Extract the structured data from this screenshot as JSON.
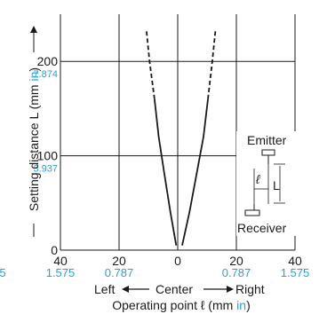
{
  "colors": {
    "line": "#1a1a1a",
    "inch_text": "#2a9fd8",
    "grid": "#1a1a1a"
  },
  "chart_data": {
    "type": "line",
    "xlabel_prefix": "Operating point ℓ (mm ",
    "xlabel_unit": "in",
    "xlabel_suffix": ")",
    "ylabel_prefix": "Setting distance L (mm ",
    "ylabel_unit": "in",
    "ylabel_suffix": ")",
    "xlim": [
      -40,
      40
    ],
    "ylim": [
      0,
      250
    ],
    "x_ticks": [
      {
        "value": -40,
        "mm": "40",
        "inch": "1.575"
      },
      {
        "value": -20,
        "mm": "20",
        "inch": "0.787"
      },
      {
        "value": 0,
        "mm": "0",
        "inch": ""
      },
      {
        "value": 20,
        "mm": "20",
        "inch": "0.787"
      },
      {
        "value": 40,
        "mm": "40",
        "inch": "1.575"
      }
    ],
    "x_clipped_left_label": "5",
    "y_ticks": [
      {
        "value": 0,
        "mm": "0",
        "inch": ""
      },
      {
        "value": 100,
        "mm": "100",
        "inch": "3.937"
      },
      {
        "value": 200,
        "mm": "200",
        "inch": "7.874"
      }
    ],
    "direction": {
      "left": "Left",
      "center": "Center",
      "right": "Right"
    },
    "series": [
      {
        "side": "left",
        "solid": [
          [
            -0.5,
            5
          ],
          [
            -2.5,
            40
          ],
          [
            -4.5,
            80
          ],
          [
            -6.5,
            120
          ],
          [
            -7.9,
            160
          ]
        ],
        "dashed": [
          [
            -7.9,
            160
          ],
          [
            -9.6,
            200
          ],
          [
            -10.7,
            234
          ]
        ]
      },
      {
        "side": "right",
        "solid": [
          [
            1.5,
            5
          ],
          [
            4,
            40
          ],
          [
            6.4,
            80
          ],
          [
            8.8,
            120
          ],
          [
            10.3,
            160
          ]
        ],
        "dashed": [
          [
            10.3,
            160
          ],
          [
            11.8,
            200
          ],
          [
            12.9,
            234
          ]
        ]
      }
    ],
    "grid": true,
    "inset": {
      "emitter": "Emitter",
      "receiver": "Receiver",
      "l_symbol": "ℓ",
      "L_symbol": "L"
    }
  }
}
